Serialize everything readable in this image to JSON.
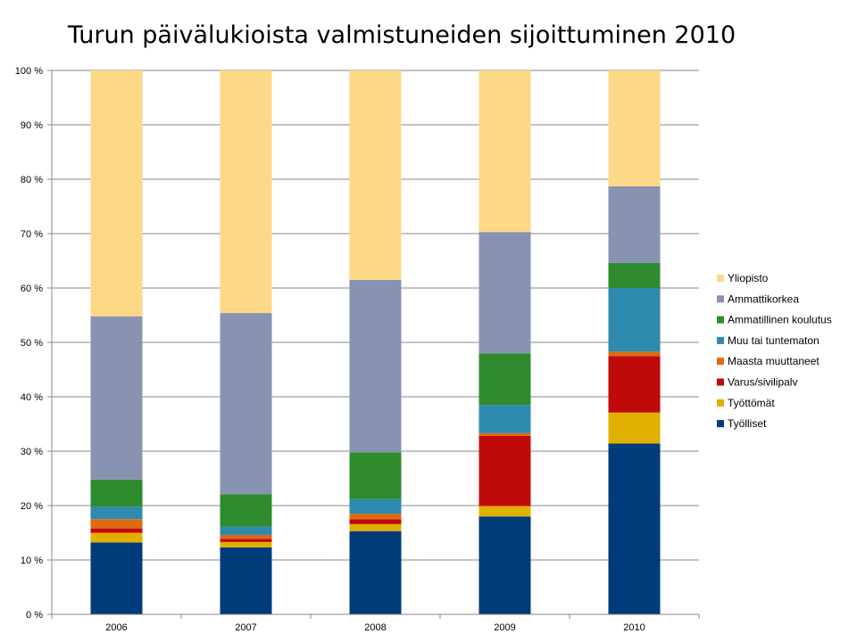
{
  "chart_data": {
    "type": "bar",
    "stacked": true,
    "percent_axis": true,
    "title": "Turun päivälukioista valmistuneiden sijoittuminen 2010",
    "xlabel": "",
    "ylabel": "",
    "categories": [
      "2006",
      "2007",
      "2008",
      "2009",
      "2010"
    ],
    "ylim": [
      0,
      100
    ],
    "yticks": [
      "0 %",
      "10 %",
      "20 %",
      "30 %",
      "40 %",
      "50 %",
      "60 %",
      "70 %",
      "80 %",
      "90 %",
      "100 %"
    ],
    "grid": "horizontal",
    "legend_position": "right",
    "series": [
      {
        "name": "Työlliset",
        "color": "#003B7A",
        "values": [
          13.2,
          12.3,
          15.3,
          18.0,
          31.4
        ]
      },
      {
        "name": "Työttömät",
        "color": "#E0B000",
        "values": [
          1.8,
          1.0,
          1.3,
          1.9,
          5.7
        ]
      },
      {
        "name": "Varus/sivilipalv",
        "color": "#C00A0A",
        "values": [
          0.8,
          0.6,
          0.9,
          12.9,
          10.4
        ]
      },
      {
        "name": "Maasta muuttaneet",
        "color": "#E06A10",
        "values": [
          1.7,
          0.7,
          1.0,
          0.5,
          0.8
        ]
      },
      {
        "name": "Muu tai tuntematon",
        "color": "#2E8AAE",
        "values": [
          2.3,
          1.5,
          2.7,
          5.2,
          11.7
        ]
      },
      {
        "name": "Ammatillinen koulutus",
        "color": "#2E8B2E",
        "values": [
          5.0,
          6.0,
          8.6,
          9.5,
          4.6
        ]
      },
      {
        "name": "Ammattikorkea",
        "color": "#8893B2",
        "values": [
          30.0,
          33.3,
          31.7,
          22.3,
          14.1
        ]
      },
      {
        "name": "Yliopisto",
        "color": "#FDD887",
        "values": [
          45.2,
          44.6,
          38.5,
          29.7,
          21.3
        ]
      }
    ]
  }
}
